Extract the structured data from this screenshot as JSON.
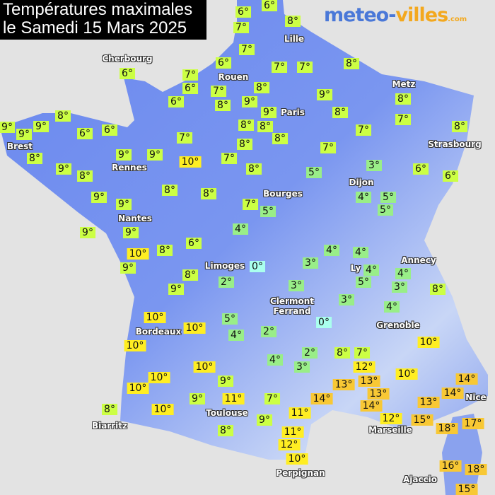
{
  "title": {
    "line1": "Températures maximales",
    "line2": "le Samedi 15 Mars 2025"
  },
  "logo": {
    "part1": "meteo-",
    "part2": "villes",
    "suffix": ".com"
  },
  "colors": {
    "cold": "#aaffee",
    "cool": "#99ee88",
    "mild": "#ccff44",
    "warm": "#ffee22",
    "hot": "#f8c834",
    "land": "#6f8ff0",
    "sea": "#e3e3e3"
  },
  "cities": [
    "Cherbourg",
    "Lille",
    "Rouen",
    "Paris",
    "Metz",
    "Strasbourg",
    "Brest",
    "Rennes",
    "Dijon",
    "Bourges",
    "Nantes",
    "Limoges",
    "Annecy",
    "Ly",
    "Clermont\nFerrand",
    "Grenoble",
    "Bordeaux",
    "Nice",
    "Toulouse",
    "Marseille",
    "Biarritz",
    "Perpignan",
    "Ajaccio"
  ],
  "temperatures": [
    6,
    6,
    7,
    8,
    7,
    6,
    7,
    6,
    7,
    8,
    7,
    7,
    8,
    9,
    8,
    8,
    9,
    9,
    8,
    7,
    6,
    8,
    8,
    8,
    7,
    8,
    6,
    8,
    9,
    9,
    9,
    6,
    6,
    8,
    9,
    8,
    9,
    9,
    7,
    10,
    7,
    8,
    8,
    7,
    5,
    3,
    6,
    6,
    9,
    9,
    8,
    8,
    7,
    5,
    4,
    5,
    5,
    9,
    9,
    4,
    6,
    10,
    9,
    8,
    4,
    4,
    0,
    3,
    8,
    9,
    2,
    4,
    5,
    4,
    3,
    8,
    3,
    3,
    4,
    10,
    10,
    5,
    4,
    2,
    0,
    10,
    10,
    2,
    3,
    4,
    8,
    7,
    10,
    12,
    10,
    10,
    10,
    9,
    13,
    13,
    14,
    14,
    8,
    10,
    9,
    11,
    7,
    14,
    13,
    14,
    12,
    13,
    11,
    9,
    15,
    18,
    17,
    8,
    11,
    12,
    10,
    16,
    18,
    15
  ]
}
